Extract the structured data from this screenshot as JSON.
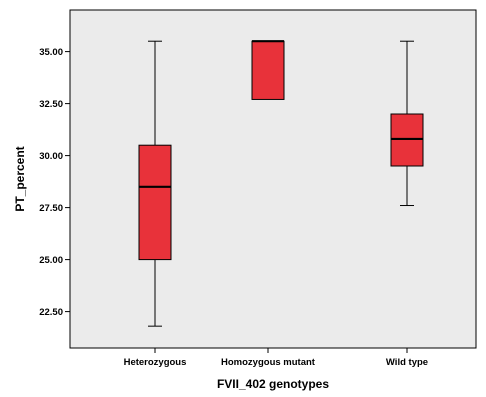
{
  "chart_data": {
    "type": "box",
    "xlabel": "FVII_402 genotypes",
    "ylabel": "PT_percent",
    "ylim": [
      20.75,
      37.0
    ],
    "y_ticks": [
      "22.50",
      "25.00",
      "27.50",
      "30.00",
      "32.50",
      "35.00"
    ],
    "y_tick_values": [
      22.5,
      25.0,
      27.5,
      30.0,
      32.5,
      35.0
    ],
    "grid": false,
    "plot_background": "#ebebeb",
    "box_color": "#e8323a",
    "categories": [
      "Heterozygous",
      "Homozygous mutant",
      "Wild type"
    ],
    "boxes": [
      {
        "category": "Heterozygous",
        "min": 21.8,
        "q1": 25.0,
        "median": 28.5,
        "q3": 30.5,
        "max": 35.5
      },
      {
        "category": "Homozygous mutant",
        "min": 32.7,
        "q1": 32.7,
        "median": 35.5,
        "q3": 35.5,
        "max": 35.5
      },
      {
        "category": "Wild type",
        "min": 27.6,
        "q1": 29.5,
        "median": 30.8,
        "q3": 32.0,
        "max": 35.5
      }
    ]
  }
}
